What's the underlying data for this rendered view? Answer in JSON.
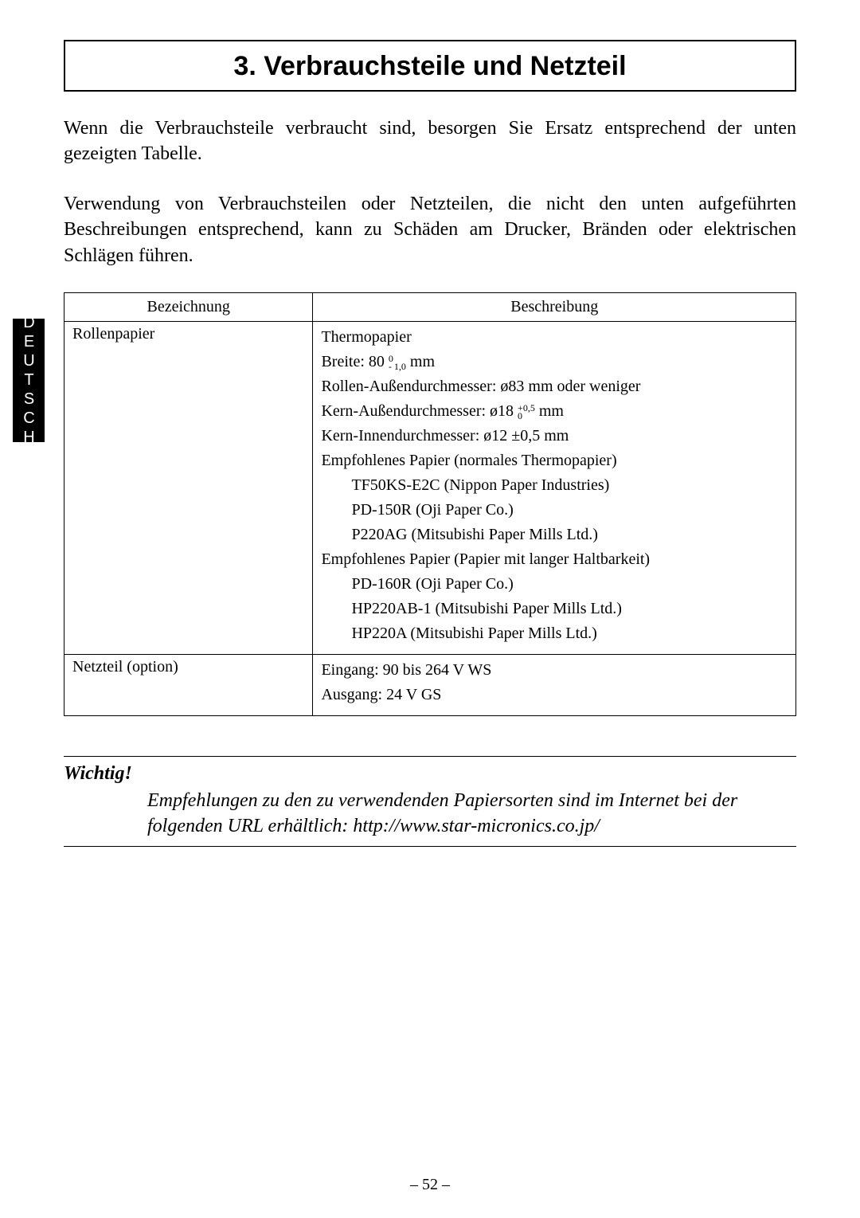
{
  "language_tab": "DEUTSCH",
  "title": "3. Verbrauchsteile und Netzteil",
  "intro_paragraph_1": "Wenn die Verbrauchsteile verbraucht sind, besorgen Sie Ersatz entsprechend der unten gezeigten Tabelle.",
  "intro_paragraph_2": "Verwendung von Verbrauchsteilen oder Netzteilen, die nicht den unten aufgeführten Beschreibungen entsprechend, kann zu Schäden am Drucker, Bränden oder elektrischen Schlägen führen.",
  "table": {
    "columns": [
      "Bezeichnung",
      "Beschreibung"
    ],
    "column_widths_pct": [
      34,
      66
    ],
    "border_color": "#000000",
    "font_size_pt": 15,
    "rows": [
      {
        "name": "Rollenpapier",
        "desc_lines": [
          {
            "text": "Thermopapier"
          },
          {
            "text": "Breite: 80 ",
            "tolerance_top": "0",
            "tolerance_bottom": "- 1,0",
            "suffix": " mm"
          },
          {
            "text": "Rollen-Außendurchmesser: ø83 mm oder weniger"
          },
          {
            "text": "Kern-Außendurchmesser: ø18 ",
            "tolerance_top": "+0,5",
            "tolerance_bottom": "0",
            "suffix": " mm"
          },
          {
            "text": "Kern-Innendurchmesser: ø12 ±0,5 mm"
          },
          {
            "text": "Empfohlenes Papier (normales Thermopapier)"
          },
          {
            "text": "TF50KS-E2C (Nippon Paper Industries)",
            "indent": true
          },
          {
            "text": "PD-150R (Oji Paper Co.)",
            "indent": true
          },
          {
            "text": "P220AG (Mitsubishi Paper Mills Ltd.)",
            "indent": true
          },
          {
            "text": "Empfohlenes Papier (Papier mit langer Haltbarkeit)"
          },
          {
            "text": "PD-160R (Oji Paper Co.)",
            "indent": true
          },
          {
            "text": "HP220AB-1 (Mitsubishi Paper Mills Ltd.)",
            "indent": true
          },
          {
            "text": "HP220A (Mitsubishi Paper Mills Ltd.)",
            "indent": true
          }
        ]
      },
      {
        "name": "Netzteil (option)",
        "desc_lines": [
          {
            "text": "Eingang: 90 bis 264 V WS"
          },
          {
            "text": "Ausgang: 24 V GS"
          }
        ]
      }
    ]
  },
  "note": {
    "heading": "Wichtig!",
    "body": "Empfehlungen zu den zu verwendenden Papiersorten sind im Internet bei der folgenden URL erhältlich: http://www.star-micronics.co.jp/"
  },
  "page_number": "– 52 –",
  "colors": {
    "background": "#ffffff",
    "text": "#000000",
    "tab_bg": "#000000",
    "tab_fg": "#ffffff"
  },
  "typography": {
    "title_family": "Arial",
    "title_size_pt": 26,
    "body_family": "Times New Roman",
    "body_size_pt": 18,
    "note_style": "italic"
  }
}
